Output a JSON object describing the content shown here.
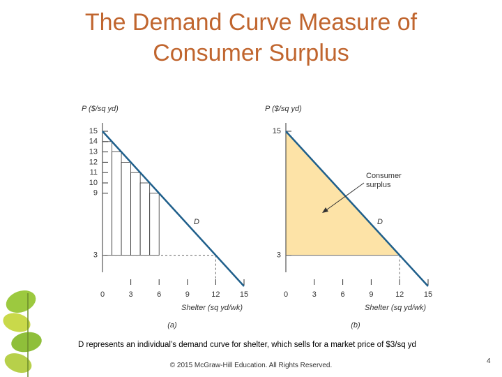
{
  "title": "The Demand Curve Measure of Consumer Surplus",
  "caption": "D represents an individual’s demand curve for shelter, which sells for a market price of $3/sq yd",
  "footer": "© 2015 McGraw-Hill Education. All Rights Reserved.",
  "page_number": "4",
  "chart_data": [
    {
      "type": "line",
      "y_label": "P ($/sq yd)",
      "x_label": "Shelter (sq yd/wk)",
      "panel_label": "(a)",
      "curve_label": "D",
      "x": [
        0,
        15
      ],
      "values": [
        15,
        0
      ],
      "color": "#1f5f8b",
      "xlim": [
        0,
        15
      ],
      "ylim": [
        0,
        15
      ],
      "xticks": [
        0,
        3,
        6,
        9,
        12,
        15
      ],
      "yticks": [
        3,
        9,
        10,
        11,
        12,
        13,
        14,
        15
      ],
      "price": 3,
      "quantity": 12,
      "dashed_price": true,
      "steps": {
        "x": [
          1,
          2,
          3,
          4,
          5,
          6
        ],
        "values": [
          14,
          13,
          12,
          11,
          10,
          9
        ]
      }
    },
    {
      "type": "line",
      "y_label": "P ($/sq yd)",
      "x_label": "Shelter (sq yd/wk)",
      "panel_label": "(b)",
      "curve_label": "D",
      "x": [
        0,
        15
      ],
      "values": [
        15,
        0
      ],
      "color": "#1f5f8b",
      "xlim": [
        0,
        15
      ],
      "ylim": [
        0,
        15
      ],
      "xticks": [
        0,
        3,
        6,
        9,
        12,
        15
      ],
      "yticks": [
        3,
        15
      ],
      "price": 3,
      "quantity": 12,
      "dashed_price": false,
      "shade_color": "#fde3a7",
      "annotation": "Consumer surplus"
    }
  ]
}
